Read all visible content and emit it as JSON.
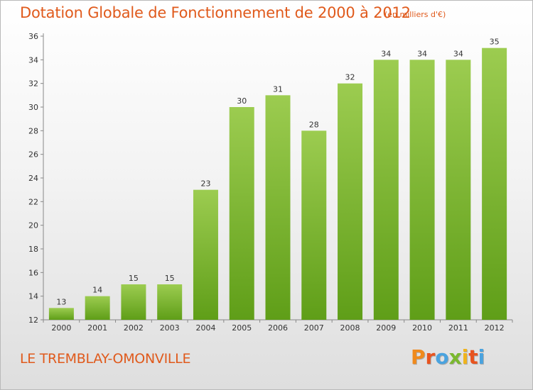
{
  "header": {
    "title": "Dotation Globale de Fonctionnement de 2000 à 2012",
    "subtitle": "(en milliers d'€)"
  },
  "footer": {
    "place": "LE TREMBLAY-OMONVILLE",
    "logo_letters": [
      "P",
      "r",
      "o",
      "x",
      "i",
      "t",
      "i"
    ],
    "logo_colors": [
      "#f08a1c",
      "#e8541f",
      "#4aa3df",
      "#7ab82e",
      "#f0b41c",
      "#e8541f",
      "#4aa3df"
    ]
  },
  "colors": {
    "bar_top": "#9ccc50",
    "bar_bottom": "#5f9e18",
    "axis": "#888888",
    "text": "#333333"
  },
  "chart_data": {
    "type": "bar",
    "categories": [
      "2000",
      "2001",
      "2002",
      "2003",
      "2004",
      "2005",
      "2006",
      "2007",
      "2008",
      "2009",
      "2010",
      "2011",
      "2012"
    ],
    "values": [
      13,
      14,
      15,
      15,
      23,
      30,
      31,
      28,
      32,
      34,
      34,
      34,
      35
    ],
    "ylim": [
      12,
      36
    ],
    "yticks": [
      12,
      14,
      16,
      18,
      20,
      22,
      24,
      26,
      28,
      30,
      32,
      34,
      36
    ],
    "grid": false,
    "data_labels": true
  }
}
